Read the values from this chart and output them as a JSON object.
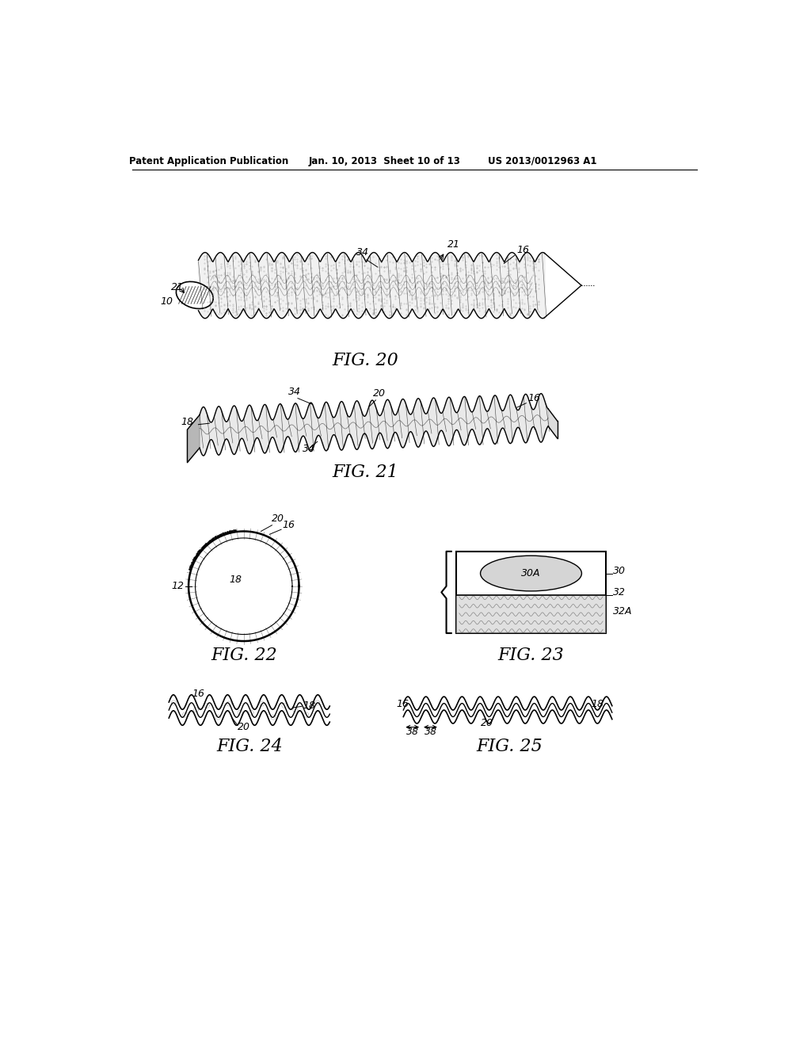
{
  "header_left": "Patent Application Publication",
  "header_mid": "Jan. 10, 2013  Sheet 10 of 13",
  "header_right": "US 2013/0012963 A1",
  "bg_color": "#ffffff",
  "fig20_label": "FIG. 20",
  "fig21_label": "FIG. 21",
  "fig22_label": "FIG. 22",
  "fig23_label": "FIG. 23",
  "fig24_label": "FIG. 24",
  "fig25_label": "FIG. 25"
}
